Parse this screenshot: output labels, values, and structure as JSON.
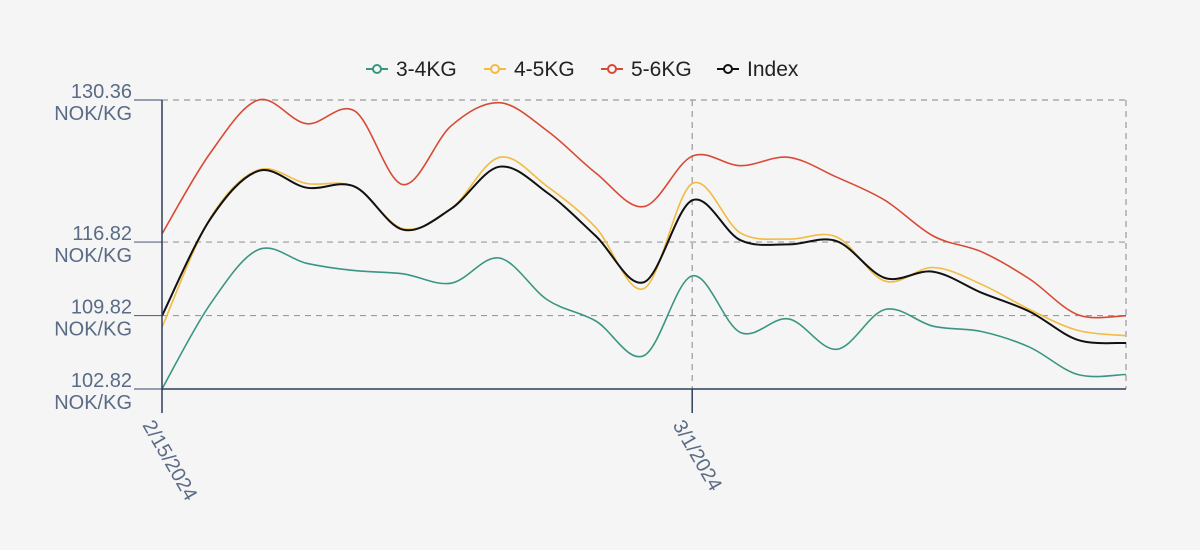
{
  "chart_data": {
    "type": "line",
    "title": "",
    "xlabel": "",
    "ylabel": "",
    "x": [
      "2/15/2024",
      "2/16/2024",
      "2/19/2024",
      "2/20/2024",
      "2/21/2024",
      "2/22/2024",
      "2/23/2024",
      "2/26/2024",
      "2/27/2024",
      "2/28/2024",
      "2/29/2024",
      "3/1/2024",
      "3/4/2024",
      "3/5/2024",
      "3/6/2024",
      "3/7/2024",
      "3/8/2024",
      "3/11/2024",
      "3/12/2024",
      "3/13/2024",
      "3/14/2024"
    ],
    "x_ticks": [
      {
        "value": "2/15/2024",
        "label": "2/15/2024"
      },
      {
        "value": "3/1/2024",
        "label": "3/1/2024"
      }
    ],
    "y_ticks": [
      {
        "value": 102.82,
        "number": "102.82",
        "unit": "NOK/KG"
      },
      {
        "value": 109.82,
        "number": "109.82",
        "unit": "NOK/KG"
      },
      {
        "value": 116.82,
        "number": "116.82",
        "unit": "NOK/KG"
      },
      {
        "value": 130.36,
        "number": "130.36",
        "unit": "NOK/KG"
      }
    ],
    "ylim": [
      102.82,
      130.36
    ],
    "grid": "dashed",
    "legend_position": "top-center",
    "series": [
      {
        "name": "3-4KG",
        "color": "#3a9683",
        "values": [
          102.82,
          110.9,
          116.1,
          114.8,
          114.1,
          113.8,
          112.9,
          115.3,
          111.3,
          109.3,
          106.0,
          113.6,
          108.2,
          109.5,
          106.6,
          110.4,
          108.8,
          108.3,
          106.8,
          104.2,
          104.2
        ]
      },
      {
        "name": "4-5KG",
        "color": "#f2bb42",
        "values": [
          108.7,
          119.1,
          123.7,
          122.4,
          122.1,
          118.1,
          120.0,
          124.9,
          122.1,
          118.2,
          112.4,
          122.4,
          117.7,
          117.1,
          117.3,
          113.1,
          114.4,
          112.8,
          110.4,
          108.4,
          107.9
        ]
      },
      {
        "name": "5-6KG",
        "color": "#d94a35",
        "values": [
          117.6,
          125.3,
          130.36,
          128.1,
          129.3,
          122.3,
          127.9,
          130.1,
          127.4,
          123.4,
          120.2,
          125.0,
          124.1,
          124.9,
          123.0,
          120.8,
          117.4,
          115.9,
          113.3,
          109.9,
          109.8
        ]
      },
      {
        "name": "Index",
        "color": "#111111",
        "values": [
          109.8,
          119.0,
          123.6,
          122.0,
          122.1,
          118.0,
          120.0,
          124.0,
          121.5,
          117.4,
          113.0,
          120.8,
          117.0,
          116.6,
          116.9,
          113.4,
          114.0,
          112.0,
          110.2,
          107.5,
          107.2
        ]
      }
    ]
  }
}
